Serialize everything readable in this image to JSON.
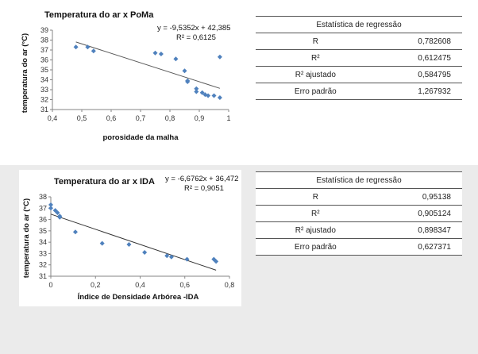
{
  "charts": [
    {
      "type": "scatter",
      "title": "Temperatura do ar x PoMa",
      "xlabel": "porosidade da malha",
      "ylabel": "temperatura do ar (°C)",
      "xlim": [
        0.4,
        1
      ],
      "ylim": [
        31,
        39
      ],
      "xticks": [
        "0,4",
        "0,5",
        "0,6",
        "0,7",
        "0,8",
        "0,9",
        "1"
      ],
      "yticks": [
        "31",
        "32",
        "33",
        "34",
        "35",
        "36",
        "37",
        "38",
        "39"
      ],
      "equation": "y = -9,5352x + 42,385",
      "r2": "R² = 0,6125",
      "trendline": {
        "slope": -9.5352,
        "intercept": 42.385,
        "x_range": [
          0.48,
          0.97
        ]
      },
      "marker_color": "#4f81bd",
      "trend_color": "#595959",
      "points": [
        {
          "x": 0.48,
          "y": 37.3
        },
        {
          "x": 0.52,
          "y": 37.3
        },
        {
          "x": 0.54,
          "y": 36.9
        },
        {
          "x": 0.75,
          "y": 36.7
        },
        {
          "x": 0.77,
          "y": 36.6
        },
        {
          "x": 0.82,
          "y": 36.1
        },
        {
          "x": 0.85,
          "y": 34.9
        },
        {
          "x": 0.86,
          "y": 33.9
        },
        {
          "x": 0.86,
          "y": 33.8
        },
        {
          "x": 0.89,
          "y": 33.1
        },
        {
          "x": 0.89,
          "y": 32.8
        },
        {
          "x": 0.91,
          "y": 32.7
        },
        {
          "x": 0.92,
          "y": 32.5
        },
        {
          "x": 0.93,
          "y": 32.4
        },
        {
          "x": 0.95,
          "y": 32.4
        },
        {
          "x": 0.97,
          "y": 32.2
        },
        {
          "x": 0.97,
          "y": 36.3
        }
      ]
    },
    {
      "type": "scatter",
      "title": "Temperatura do ar x IDA",
      "xlabel": "Índice de Densidade Arbórea -IDA",
      "ylabel": "temperatura do ar (°C)",
      "xlim": [
        0,
        0.8
      ],
      "ylim": [
        31,
        38
      ],
      "xticks": [
        "0",
        "0,2",
        "0,4",
        "0,6",
        "0,8"
      ],
      "yticks": [
        "31",
        "32",
        "33",
        "34",
        "35",
        "36",
        "37",
        "38"
      ],
      "equation": "y = -6,6762x + 36,472",
      "r2": "R² = 0,9051",
      "trendline": {
        "slope": -6.6762,
        "intercept": 36.472,
        "x_range": [
          0,
          0.74
        ]
      },
      "marker_color": "#4f81bd",
      "trend_color": "#333333",
      "points": [
        {
          "x": 0.0,
          "y": 37.3
        },
        {
          "x": 0.0,
          "y": 37.0
        },
        {
          "x": 0.02,
          "y": 36.8
        },
        {
          "x": 0.03,
          "y": 36.6
        },
        {
          "x": 0.04,
          "y": 36.3
        },
        {
          "x": 0.04,
          "y": 36.2
        },
        {
          "x": 0.11,
          "y": 34.9
        },
        {
          "x": 0.23,
          "y": 33.9
        },
        {
          "x": 0.35,
          "y": 33.8
        },
        {
          "x": 0.42,
          "y": 33.1
        },
        {
          "x": 0.52,
          "y": 32.8
        },
        {
          "x": 0.54,
          "y": 32.7
        },
        {
          "x": 0.61,
          "y": 32.5
        },
        {
          "x": 0.73,
          "y": 32.5
        },
        {
          "x": 0.74,
          "y": 32.3
        }
      ]
    }
  ],
  "tables": [
    {
      "title": "Estatística de regressão",
      "rows": [
        {
          "label": "R",
          "value": "0,782608"
        },
        {
          "label": "R²",
          "value": "0,612475"
        },
        {
          "label": "R² ajustado",
          "value": "0,584795"
        },
        {
          "label": "Erro padrão",
          "value": "1,267932"
        }
      ]
    },
    {
      "title": "Estatística de regressão",
      "rows": [
        {
          "label": "R",
          "value": "0,95138"
        },
        {
          "label": "R²",
          "value": "0,905124"
        },
        {
          "label": "R² ajustado",
          "value": "0,898347"
        },
        {
          "label": "Erro padrão",
          "value": "0,627371"
        }
      ]
    }
  ],
  "chart_data": [
    {
      "type": "scatter",
      "title": "Temperatura do ar x PoMa",
      "xlabel": "porosidade da malha",
      "ylabel": "temperatura do ar (°C)",
      "xlim": [
        0.4,
        1
      ],
      "ylim": [
        31,
        39
      ],
      "grid": false,
      "series": [
        {
          "values_from": "charts.0.points"
        }
      ],
      "trendline": "y = -9,5352x + 42,385; R² = 0,6125"
    },
    {
      "type": "scatter",
      "title": "Temperatura do ar x IDA",
      "xlabel": "Índice de Densidade Arbórea -IDA",
      "ylabel": "temperatura do ar (°C)",
      "xlim": [
        0,
        0.8
      ],
      "ylim": [
        31,
        38
      ],
      "grid": false,
      "series": [
        {
          "values_from": "charts.1.points"
        }
      ],
      "trendline": "y = -6,6762x + 36,472; R² = 0,9051"
    }
  ]
}
